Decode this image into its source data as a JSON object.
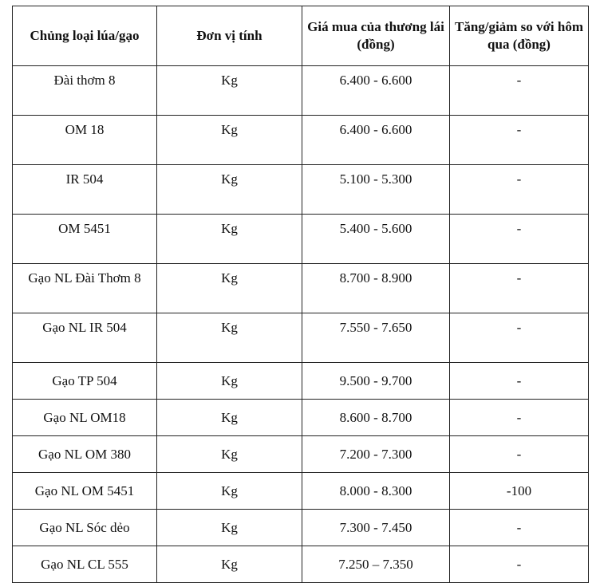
{
  "table": {
    "headers": [
      "Chủng loại lúa/gạo",
      "Đơn vị tính",
      "Giá mua của thương lái (đồng)",
      "Tăng/giảm so với hôm qua (đồng)"
    ],
    "rows": [
      {
        "type": "Đài thơm 8",
        "unit": "Kg",
        "price": "6.400 - 6.600",
        "change": "-"
      },
      {
        "type": "OM 18",
        "unit": "Kg",
        "price": "6.400 - 6.600",
        "change": "-"
      },
      {
        "type": "IR 504",
        "unit": "Kg",
        "price": "5.100 - 5.300",
        "change": "-"
      },
      {
        "type": "OM 5451",
        "unit": "Kg",
        "price": "5.400 - 5.600",
        "change": "-"
      },
      {
        "type": "Gạo NL Đài Thơm 8",
        "unit": "Kg",
        "price": "8.700 - 8.900",
        "change": "-"
      },
      {
        "type": "Gạo NL IR 504",
        "unit": "Kg",
        "price": "7.550 - 7.650",
        "change": "-"
      },
      {
        "type": "Gạo TP 504",
        "unit": "Kg",
        "price": "9.500 - 9.700",
        "change": "-"
      },
      {
        "type": "Gạo NL OM18",
        "unit": "Kg",
        "price": "8.600 - 8.700",
        "change": "-"
      },
      {
        "type": "Gạo NL OM 380",
        "unit": "Kg",
        "price": "7.200 - 7.300",
        "change": "-"
      },
      {
        "type": "Gạo NL OM 5451",
        "unit": "Kg",
        "price": "8.000 - 8.300",
        "change": "-100"
      },
      {
        "type": "Gạo NL Sóc dẻo",
        "unit": "Kg",
        "price": "7.300 - 7.450",
        "change": "-"
      },
      {
        "type": "Gạo NL CL 555",
        "unit": "Kg",
        "price": "7.250 – 7.350",
        "change": "-"
      }
    ]
  }
}
